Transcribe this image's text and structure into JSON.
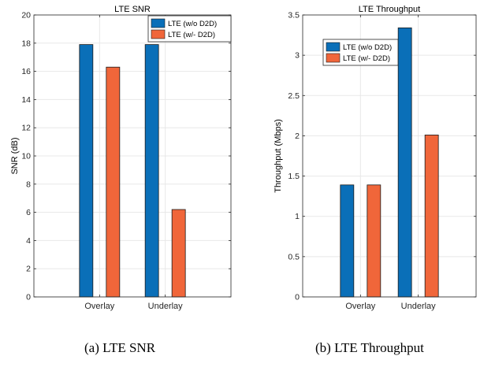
{
  "colors": {
    "without_d2d": "#0a6fb8",
    "with_d2d": "#f0663a",
    "grid": "#e8e8e8",
    "axis": "#262626"
  },
  "chart_data": [
    {
      "type": "bar",
      "title": "LTE SNR",
      "xlabel": "",
      "ylabel": "SNR (dB)",
      "categories": [
        "Overlay",
        "Underlay"
      ],
      "ylim": [
        0,
        20
      ],
      "yticks": [
        0,
        2,
        4,
        6,
        8,
        10,
        12,
        14,
        16,
        18,
        20
      ],
      "ytick_labels": [
        "0",
        "2",
        "4",
        "6",
        "8",
        "10",
        "12",
        "14",
        "16",
        "18",
        "20"
      ],
      "grid": true,
      "legend_position": "top-right",
      "series": [
        {
          "name": "LTE (w/o D2D)",
          "values": [
            17.9,
            17.9
          ]
        },
        {
          "name": "LTE (w/- D2D)",
          "values": [
            16.3,
            6.2
          ]
        }
      ]
    },
    {
      "type": "bar",
      "title": "LTE Throughput",
      "xlabel": "",
      "ylabel": "Throughput (Mbps)",
      "categories": [
        "Overlay",
        "Underlay"
      ],
      "ylim": [
        0,
        3.5
      ],
      "yticks": [
        0,
        0.5,
        1,
        1.5,
        2,
        2.5,
        3,
        3.5
      ],
      "ytick_labels": [
        "0",
        "0.5",
        "1",
        "1.5",
        "2",
        "2.5",
        "3",
        "3.5"
      ],
      "grid": true,
      "legend_position": "top-left",
      "series": [
        {
          "name": "LTE (w/o D2D)",
          "values": [
            1.39,
            3.34
          ]
        },
        {
          "name": "LTE (w/- D2D)",
          "values": [
            1.39,
            2.01
          ]
        }
      ]
    }
  ],
  "captions": [
    "(a)  LTE SNR",
    "(b)  LTE Throughput"
  ]
}
